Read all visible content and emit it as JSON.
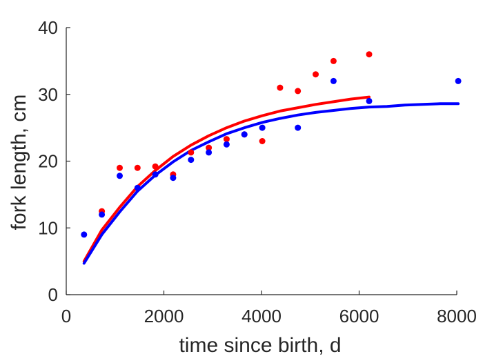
{
  "chart_data": {
    "type": "scatter",
    "xlabel": "time since birth, d",
    "ylabel": "fork length, cm",
    "xlim": [
      0,
      8000
    ],
    "ylim": [
      0,
      40
    ],
    "xticks": [
      0,
      2000,
      4000,
      6000,
      8000
    ],
    "yticks": [
      0,
      10,
      20,
      30,
      40
    ],
    "grid": false,
    "series": [
      {
        "kind": "points",
        "color": "#ff0000",
        "x": [
          730,
          1095,
          1460,
          1825,
          2190,
          2555,
          2920,
          3285,
          3650,
          4015,
          4380,
          4745,
          5110,
          5475,
          6205
        ],
        "y": [
          12.5,
          19.0,
          19.0,
          19.2,
          18.0,
          21.3,
          22.0,
          23.3,
          24.0,
          23.0,
          31.0,
          30.5,
          33.0,
          35.0,
          36.0
        ]
      },
      {
        "kind": "points",
        "color": "#0000ff",
        "x": [
          365,
          730,
          1095,
          1460,
          1825,
          2190,
          2555,
          2920,
          3285,
          3650,
          4015,
          4745,
          5475,
          6205,
          8030
        ],
        "y": [
          9.0,
          12.0,
          17.8,
          16.0,
          18.0,
          17.5,
          20.2,
          21.3,
          22.5,
          24.0,
          25.0,
          25.0,
          32.0,
          29.0,
          32.0
        ]
      },
      {
        "kind": "curve",
        "color": "#ff0000",
        "x": [
          365,
          730,
          1095,
          1460,
          1825,
          2190,
          2555,
          2920,
          3285,
          3650,
          4015,
          4380,
          4745,
          5110,
          5475,
          5840,
          6205
        ],
        "y": [
          5.0,
          9.7,
          13.1,
          16.2,
          18.6,
          20.7,
          22.4,
          23.8,
          25.0,
          26.0,
          26.8,
          27.5,
          28.0,
          28.5,
          28.9,
          29.3,
          29.6
        ]
      },
      {
        "kind": "curve",
        "color": "#0000ff",
        "x": [
          365,
          730,
          1095,
          1460,
          1825,
          2190,
          2555,
          2920,
          3285,
          3650,
          4015,
          4380,
          4745,
          5110,
          5475,
          5840,
          6205,
          6570,
          6935,
          7300,
          7665,
          8030
        ],
        "y": [
          4.7,
          9.0,
          12.4,
          15.5,
          17.9,
          19.9,
          21.6,
          22.9,
          24.1,
          25.0,
          25.8,
          26.4,
          26.9,
          27.3,
          27.6,
          27.9,
          28.1,
          28.2,
          28.4,
          28.5,
          28.6,
          28.6
        ]
      }
    ]
  }
}
